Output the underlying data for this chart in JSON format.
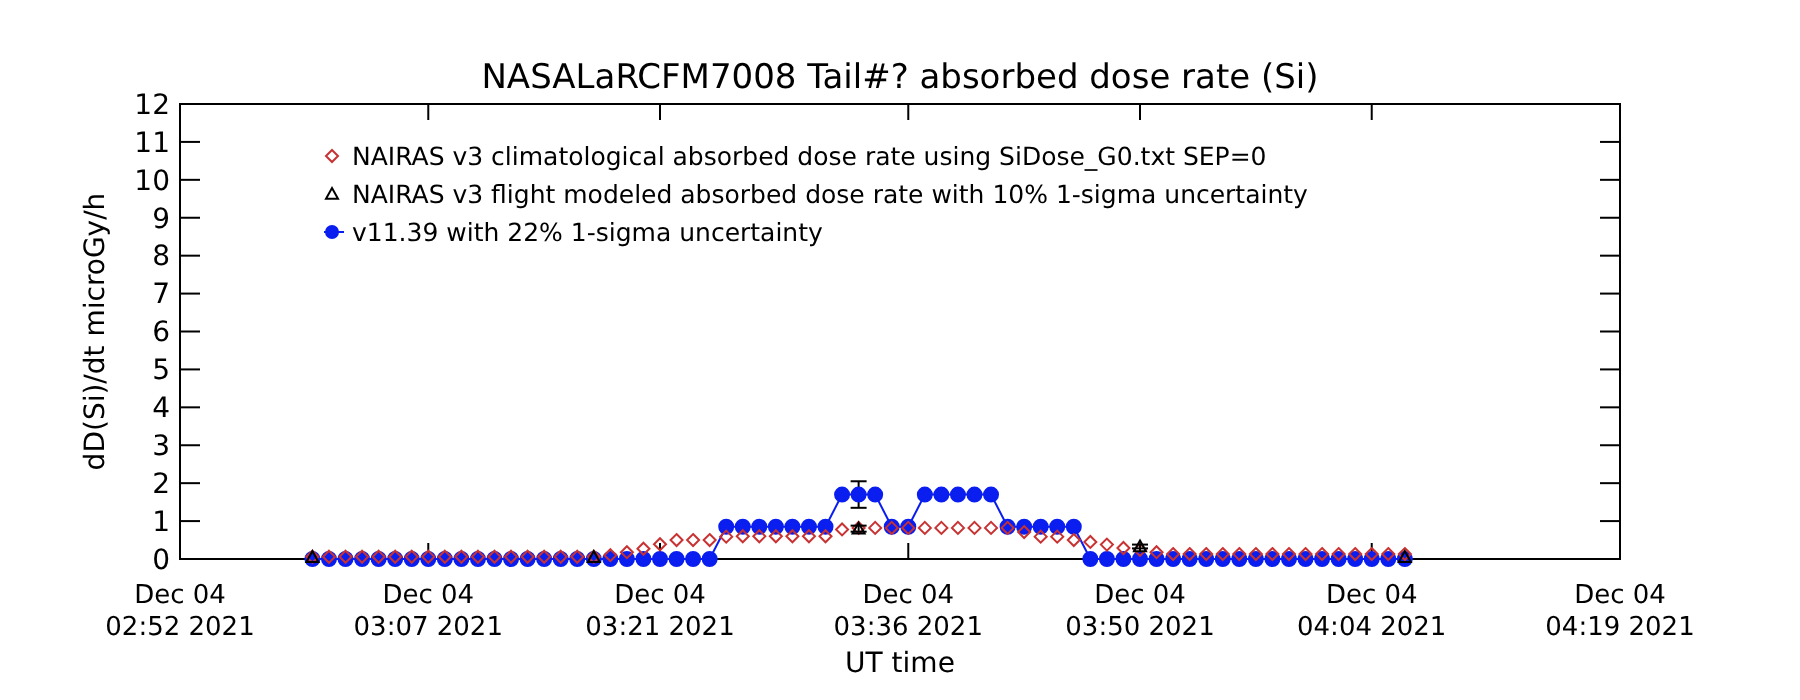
{
  "chart_data": {
    "type": "line",
    "title": "NASALaRCFM7008  Tail#? absorbed dose rate (Si)",
    "xlabel": "UT time",
    "ylabel": "dD(Si)/dt microGy/h",
    "x": [
      "2021-12-04T03:00",
      "2021-12-04T03:01",
      "2021-12-04T03:02",
      "2021-12-04T03:03",
      "2021-12-04T03:04",
      "2021-12-04T03:05",
      "2021-12-04T03:06",
      "2021-12-04T03:07",
      "2021-12-04T03:08",
      "2021-12-04T03:09",
      "2021-12-04T03:10",
      "2021-12-04T03:11",
      "2021-12-04T03:12",
      "2021-12-04T03:13",
      "2021-12-04T03:14",
      "2021-12-04T03:15",
      "2021-12-04T03:16",
      "2021-12-04T03:17",
      "2021-12-04T03:18",
      "2021-12-04T03:19",
      "2021-12-04T03:20",
      "2021-12-04T03:21",
      "2021-12-04T03:22",
      "2021-12-04T03:23",
      "2021-12-04T03:24",
      "2021-12-04T03:25",
      "2021-12-04T03:26",
      "2021-12-04T03:27",
      "2021-12-04T03:28",
      "2021-12-04T03:29",
      "2021-12-04T03:30",
      "2021-12-04T03:31",
      "2021-12-04T03:32",
      "2021-12-04T03:33",
      "2021-12-04T03:34",
      "2021-12-04T03:35",
      "2021-12-04T03:36",
      "2021-12-04T03:37",
      "2021-12-04T03:38",
      "2021-12-04T03:39",
      "2021-12-04T03:40",
      "2021-12-04T03:41",
      "2021-12-04T03:42",
      "2021-12-04T03:43",
      "2021-12-04T03:44",
      "2021-12-04T03:45",
      "2021-12-04T03:46",
      "2021-12-04T03:47",
      "2021-12-04T03:48",
      "2021-12-04T03:49",
      "2021-12-04T03:50",
      "2021-12-04T03:51",
      "2021-12-04T03:52",
      "2021-12-04T03:53",
      "2021-12-04T03:54",
      "2021-12-04T03:55",
      "2021-12-04T03:56",
      "2021-12-04T03:57",
      "2021-12-04T03:58",
      "2021-12-04T03:59",
      "2021-12-04T04:00",
      "2021-12-04T04:01",
      "2021-12-04T04:02",
      "2021-12-04T04:03",
      "2021-12-04T04:04",
      "2021-12-04T04:05",
      "2021-12-04T04:06"
    ],
    "xlim": [
      "2021-12-04T02:52",
      "2021-12-04T04:19"
    ],
    "xticks": [
      {
        "value": "2021-12-04T02:52",
        "label": "Dec 04\n02:52 2021"
      },
      {
        "value": "2021-12-04T03:07",
        "label": "Dec 04\n03:07 2021"
      },
      {
        "value": "2021-12-04T03:21",
        "label": "Dec 04\n03:21 2021"
      },
      {
        "value": "2021-12-04T03:36",
        "label": "Dec 04\n03:36 2021"
      },
      {
        "value": "2021-12-04T03:50",
        "label": "Dec 04\n03:50 2021"
      },
      {
        "value": "2021-12-04T04:04",
        "label": "Dec 04\n04:04 2021"
      },
      {
        "value": "2021-12-04T04:19",
        "label": "Dec 04\n04:19 2021"
      }
    ],
    "ylim": [
      0,
      12
    ],
    "yticks": [
      0,
      1,
      2,
      3,
      4,
      5,
      6,
      7,
      8,
      9,
      10,
      11,
      12
    ],
    "legend": "top left",
    "series": [
      {
        "name": "NAIRAS v3 climatological absorbed dose rate using SiDose_G0.txt SEP=0",
        "type": "scatter",
        "marker": "diamond",
        "color": "#c83232",
        "values": [
          0.06,
          0.06,
          0.06,
          0.06,
          0.06,
          0.06,
          0.06,
          0.06,
          0.06,
          0.06,
          0.06,
          0.06,
          0.06,
          0.06,
          0.06,
          0.06,
          0.06,
          0.06,
          0.1,
          0.18,
          0.27,
          0.39,
          0.5,
          0.5,
          0.5,
          0.59,
          0.6,
          0.6,
          0.6,
          0.6,
          0.6,
          0.6,
          0.78,
          0.82,
          0.82,
          0.82,
          0.82,
          0.82,
          0.82,
          0.82,
          0.82,
          0.82,
          0.82,
          0.71,
          0.59,
          0.59,
          0.5,
          0.45,
          0.38,
          0.29,
          0.24,
          0.18,
          0.13,
          0.13,
          0.13,
          0.13,
          0.13,
          0.13,
          0.13,
          0.13,
          0.13,
          0.13,
          0.13,
          0.13,
          0.13,
          0.13,
          0.13
        ]
      },
      {
        "name": "NAIRAS v3 flight modeled absorbed dose rate with 10% 1-sigma uncertainty",
        "type": "scatter",
        "marker": "triangle",
        "color": "#000000",
        "x": [
          "2021-12-04T03:00",
          "2021-12-04T03:17",
          "2021-12-04T03:33",
          "2021-12-04T03:50",
          "2021-12-04T04:06"
        ],
        "values": [
          0.05,
          0.05,
          0.8,
          0.33,
          0.05
        ],
        "errors": [
          null,
          null,
          0.08,
          0.05,
          null
        ]
      },
      {
        "name": "v11.39 with 22% 1-sigma uncertainty",
        "marker": "circle",
        "color": "#0a1ef0",
        "values": [
          0,
          0,
          0,
          0,
          0,
          0,
          0,
          0,
          0,
          0,
          0,
          0,
          0,
          0,
          0,
          0,
          0,
          0,
          0,
          0,
          0,
          0,
          0,
          0,
          0,
          0.85,
          0.85,
          0.85,
          0.85,
          0.85,
          0.85,
          0.85,
          1.7,
          1.7,
          1.7,
          0.85,
          0.85,
          1.7,
          1.7,
          1.7,
          1.7,
          1.7,
          0.85,
          0.85,
          0.85,
          0.85,
          0.85,
          0,
          0,
          0,
          0,
          0,
          0,
          0,
          0,
          0,
          0,
          0,
          0,
          0,
          0,
          0,
          0,
          0,
          0,
          0,
          0
        ],
        "errors": [
          null,
          null,
          null,
          null,
          null,
          null,
          null,
          null,
          null,
          null,
          null,
          null,
          null,
          null,
          null,
          null,
          null,
          null,
          null,
          null,
          null,
          null,
          null,
          null,
          null,
          null,
          null,
          null,
          null,
          null,
          null,
          null,
          null,
          0.35,
          null,
          null,
          null,
          null,
          null,
          null,
          null,
          null,
          null,
          null,
          null,
          null,
          null,
          null,
          null,
          null,
          null,
          null,
          null,
          null,
          null,
          null,
          null,
          null,
          null,
          null,
          null,
          null,
          null,
          null,
          null,
          null,
          null
        ]
      }
    ]
  }
}
